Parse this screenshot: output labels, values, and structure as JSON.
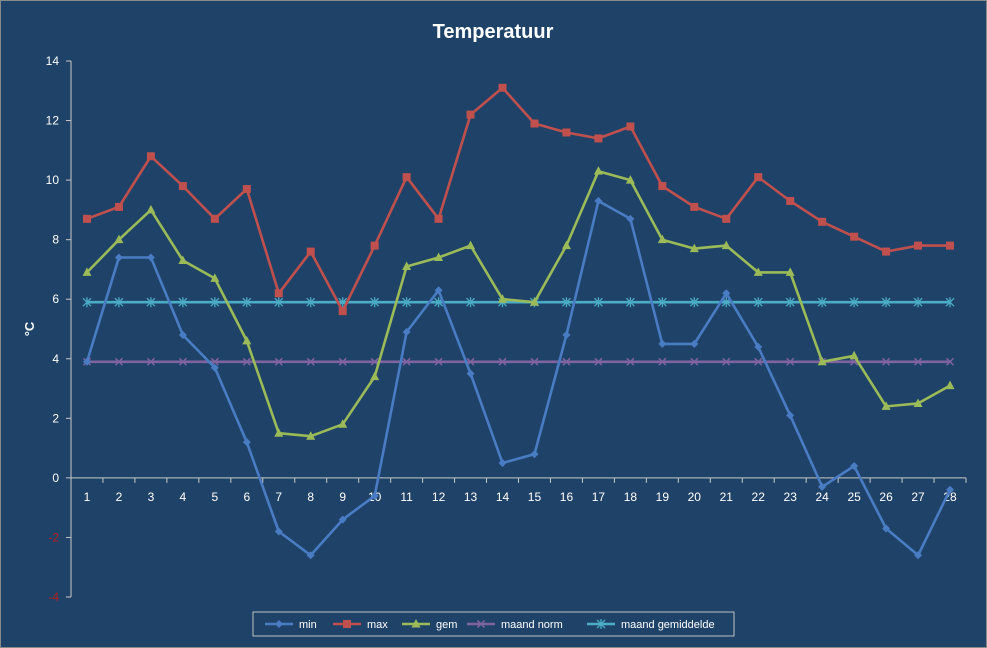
{
  "chart_data": {
    "type": "line",
    "title": "Temperatuur",
    "xlabel": "",
    "ylabel": "°C",
    "ylim": [
      -4,
      14
    ],
    "yticks": [
      -4,
      -2,
      0,
      2,
      4,
      6,
      8,
      10,
      12,
      14
    ],
    "x": [
      1,
      2,
      3,
      4,
      5,
      6,
      7,
      8,
      9,
      10,
      11,
      12,
      13,
      14,
      15,
      16,
      17,
      18,
      19,
      20,
      21,
      22,
      23,
      24,
      25,
      26,
      27,
      28
    ],
    "grid": false,
    "legend_position": "bottom",
    "series": [
      {
        "name": "min",
        "color": "#4a7cc4",
        "marker": "diamond",
        "values": [
          3.9,
          7.4,
          7.4,
          4.8,
          3.7,
          1.2,
          -1.8,
          -2.6,
          -1.4,
          -0.6,
          4.9,
          6.3,
          3.5,
          0.5,
          0.8,
          4.8,
          9.3,
          8.7,
          4.5,
          4.5,
          6.2,
          4.4,
          2.1,
          -0.3,
          0.4,
          -1.7,
          -2.6,
          -0.4
        ]
      },
      {
        "name": "max",
        "color": "#c0504d",
        "marker": "square",
        "values": [
          8.7,
          9.1,
          10.8,
          9.8,
          8.7,
          9.7,
          6.2,
          7.6,
          5.6,
          7.8,
          10.1,
          8.7,
          12.2,
          13.1,
          11.9,
          11.6,
          11.4,
          11.8,
          9.8,
          9.1,
          8.7,
          10.1,
          9.3,
          8.6,
          8.1,
          7.6,
          7.8,
          7.8
        ]
      },
      {
        "name": "gem",
        "color": "#9bbb59",
        "marker": "triangle",
        "values": [
          6.9,
          8.0,
          9.0,
          7.3,
          6.7,
          4.6,
          1.5,
          1.4,
          1.8,
          3.4,
          7.1,
          7.4,
          7.8,
          6.0,
          5.9,
          7.8,
          10.3,
          10.0,
          8.0,
          7.7,
          7.8,
          6.9,
          6.9,
          3.9,
          4.1,
          2.4,
          2.5,
          3.1
        ]
      },
      {
        "name": "maand norm",
        "color": "#8064a2",
        "marker": "x",
        "values": [
          3.9,
          3.9,
          3.9,
          3.9,
          3.9,
          3.9,
          3.9,
          3.9,
          3.9,
          3.9,
          3.9,
          3.9,
          3.9,
          3.9,
          3.9,
          3.9,
          3.9,
          3.9,
          3.9,
          3.9,
          3.9,
          3.9,
          3.9,
          3.9,
          3.9,
          3.9,
          3.9,
          3.9
        ]
      },
      {
        "name": "maand gemiddelde",
        "color": "#4bacc6",
        "marker": "star",
        "values": [
          5.9,
          5.9,
          5.9,
          5.9,
          5.9,
          5.9,
          5.9,
          5.9,
          5.9,
          5.9,
          5.9,
          5.9,
          5.9,
          5.9,
          5.9,
          5.9,
          5.9,
          5.9,
          5.9,
          5.9,
          5.9,
          5.9,
          5.9,
          5.9,
          5.9,
          5.9,
          5.9,
          5.9
        ]
      }
    ]
  }
}
